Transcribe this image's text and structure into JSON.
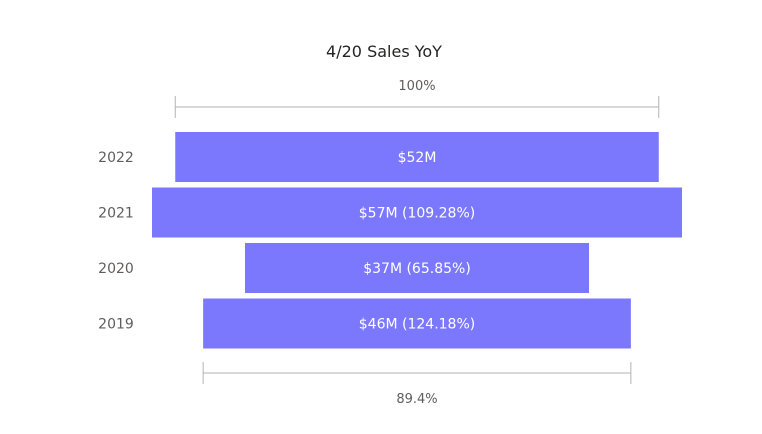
{
  "chart_data": {
    "type": "bar",
    "title": "4/20 Sales YoY",
    "categories": [
      "2022",
      "2021",
      "2020",
      "2019"
    ],
    "values": [
      52,
      57,
      37,
      46
    ],
    "data_labels": [
      "$52M",
      "$57M (109.28%)",
      "$37M (65.85%)",
      "$46M (124.18%)"
    ],
    "top_measure_label": "100%",
    "bottom_measure_label": "89.4%",
    "bar_color": "#7B78FE",
    "axis_color": "#B3B3B3"
  }
}
